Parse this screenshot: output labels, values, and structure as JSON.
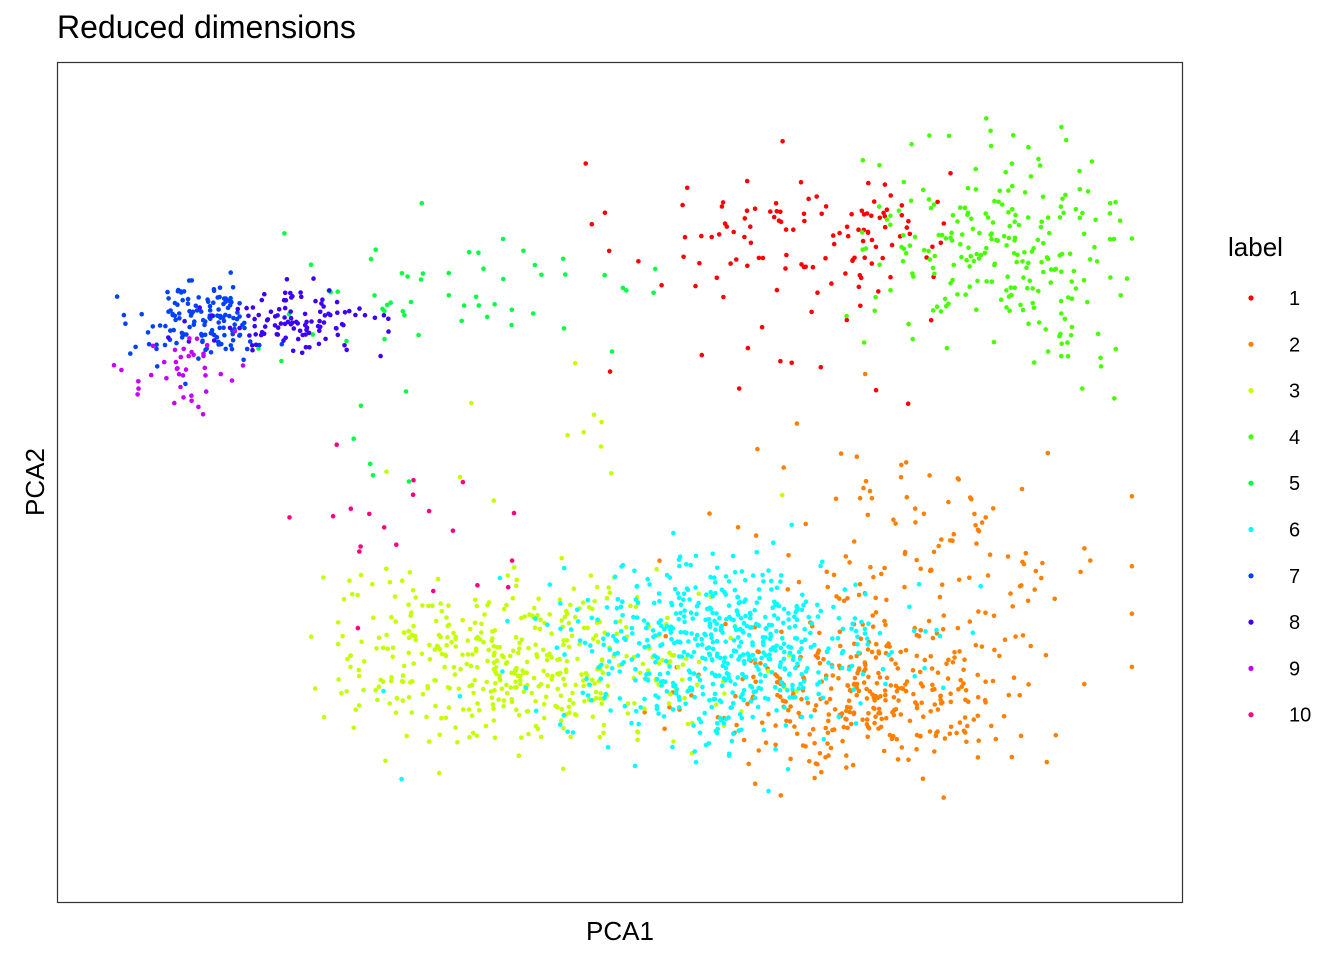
{
  "chart_data": {
    "type": "scatter",
    "title": "Reduced dimensions",
    "xlabel": "PCA1",
    "ylabel": "PCA2",
    "xlim": [
      0,
      100
    ],
    "ylim": [
      0,
      100
    ],
    "x_ticks": "none",
    "y_ticks": "none",
    "grid": false,
    "legend": {
      "title": "label",
      "placement": "right"
    },
    "series": [
      {
        "name": "1",
        "color": "#FF0000",
        "clusters": [
          {
            "cx": 66,
            "cy": 82,
            "sx": 8,
            "sy": 5,
            "n": 90
          },
          {
            "cx": 74,
            "cy": 85,
            "sx": 4,
            "sy": 2,
            "n": 25
          },
          {
            "cx": 66,
            "cy": 65,
            "sx": 7,
            "sy": 4,
            "n": 12
          }
        ]
      },
      {
        "name": "2",
        "color": "#FF8000",
        "clusters": [
          {
            "cx": 75,
            "cy": 22,
            "sx": 8,
            "sy": 5,
            "n": 330
          },
          {
            "cx": 80,
            "cy": 40,
            "sx": 9,
            "sy": 8,
            "n": 130
          }
        ]
      },
      {
        "name": "3",
        "color": "#C4FF00",
        "clusters": [
          {
            "cx": 41,
            "cy": 26,
            "sx": 9,
            "sy": 5,
            "n": 430
          },
          {
            "cx": 27,
            "cy": 32,
            "sx": 5,
            "sy": 5,
            "n": 30
          },
          {
            "cx": 45,
            "cy": 52,
            "sx": 10,
            "sy": 7,
            "n": 12
          }
        ]
      },
      {
        "name": "4",
        "color": "#46FF00",
        "clusters": [
          {
            "cx": 87,
            "cy": 82,
            "sx": 6,
            "sy": 6,
            "n": 210
          },
          {
            "cx": 94,
            "cy": 70,
            "sx": 3,
            "sy": 5,
            "n": 25
          }
        ]
      },
      {
        "name": "5",
        "color": "#00FF40",
        "clusters": [
          {
            "cx": 34,
            "cy": 74,
            "sx": 10,
            "sy": 4,
            "n": 55
          },
          {
            "cx": 27,
            "cy": 56,
            "sx": 5,
            "sy": 4,
            "n": 6
          }
        ]
      },
      {
        "name": "6",
        "color": "#00FFFF",
        "clusters": [
          {
            "cx": 60,
            "cy": 28,
            "sx": 8,
            "sy": 6,
            "n": 600
          }
        ]
      },
      {
        "name": "7",
        "color": "#0040FF",
        "clusters": [
          {
            "cx": 9,
            "cy": 71,
            "sx": 3,
            "sy": 2.5,
            "n": 140
          }
        ]
      },
      {
        "name": "8",
        "color": "#3C00FF",
        "clusters": [
          {
            "cx": 18,
            "cy": 71,
            "sx": 4,
            "sy": 2,
            "n": 110
          }
        ]
      },
      {
        "name": "9",
        "color": "#C400FF",
        "clusters": [
          {
            "cx": 8,
            "cy": 65,
            "sx": 3,
            "sy": 3,
            "n": 40
          }
        ]
      },
      {
        "name": "10",
        "color": "#FF0080",
        "clusters": [
          {
            "cx": 30,
            "cy": 42,
            "sx": 8,
            "sy": 6,
            "n": 20
          }
        ]
      }
    ]
  }
}
